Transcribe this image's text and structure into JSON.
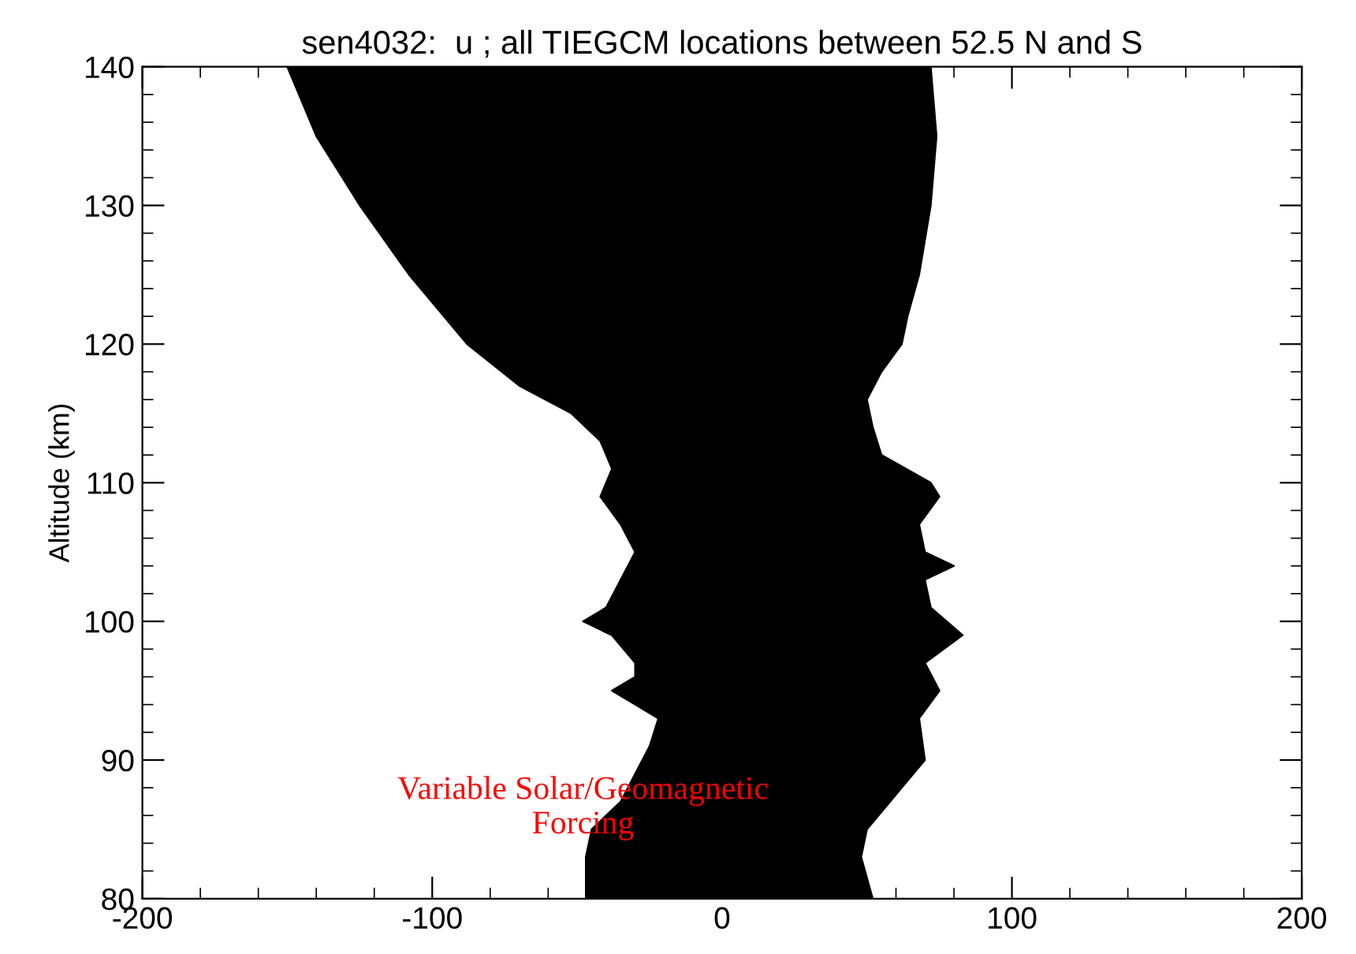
{
  "chart_data": {
    "type": "area",
    "title": "sen4032:  u ; all TIEGCM locations between 52.5 N and S",
    "ylabel": "Altitude (km)",
    "series": [
      {
        "color": "#000000",
        "x": [
          -150,
          -140,
          -125,
          -108,
          -88,
          -70,
          -52,
          -42,
          -38,
          -42,
          -35,
          -30,
          -35,
          -40,
          -48,
          -38,
          -30,
          -30,
          -38,
          -30,
          -22,
          -25,
          -30,
          -35,
          -45,
          -47,
          -47,
          52,
          48,
          50,
          62,
          70,
          68,
          75,
          70,
          83,
          72,
          70,
          80,
          70,
          68,
          75,
          72,
          55,
          52,
          50,
          55,
          62,
          64,
          68,
          72,
          74,
          72
        ],
        "values": [
          140,
          135,
          130,
          125,
          120,
          117,
          115,
          113,
          111,
          109,
          107,
          105,
          103,
          101,
          100,
          99,
          97,
          96,
          95,
          94,
          93,
          91,
          89,
          87,
          85,
          83,
          80,
          80,
          83,
          85,
          88,
          90,
          93,
          95,
          97,
          99,
          101,
          103,
          104,
          105,
          107,
          109,
          110,
          112,
          114,
          116,
          118,
          120,
          122,
          125,
          130,
          135,
          140
        ]
      }
    ],
    "xlim": [
      -200,
      200
    ],
    "xticks": [
      -200,
      -100,
      0,
      100,
      200
    ],
    "ylim": [
      80,
      140
    ],
    "yticks": [
      80,
      90,
      100,
      110,
      120,
      130,
      140
    ],
    "grid": false,
    "legend": false,
    "annotations": [
      "Variable Solar/Geomagnetic\nForcing"
    ]
  }
}
